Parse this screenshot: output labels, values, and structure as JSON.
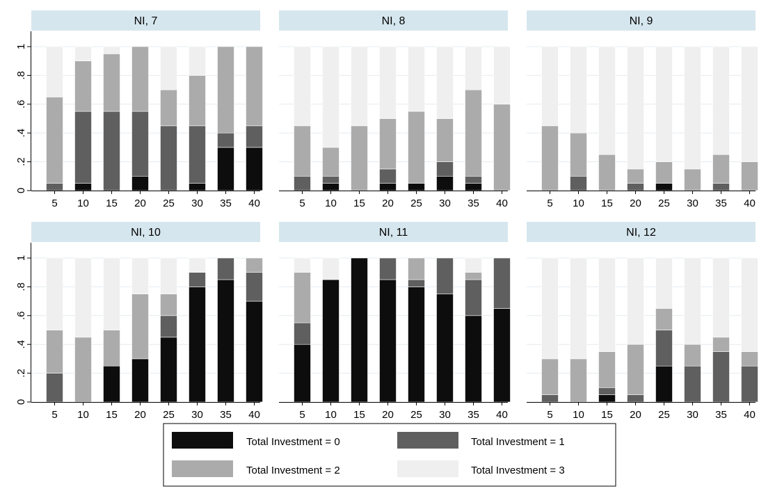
{
  "chart_data": {
    "type": "bar",
    "stacked": true,
    "layout": "facet grid 2 rows x 3 columns",
    "categories": [
      "5",
      "10",
      "15",
      "20",
      "25",
      "30",
      "35",
      "40"
    ],
    "yticks": [
      "0",
      ".2",
      ".4",
      ".6",
      ".8",
      "1"
    ],
    "ytick_values": [
      0,
      0.2,
      0.4,
      0.6,
      0.8,
      1
    ],
    "ylim": [
      0,
      1.1
    ],
    "grid": true,
    "legend_position": "bottom",
    "series_colors": [
      "#0d0d0d",
      "#5f5f5f",
      "#ababab",
      "#efefef"
    ],
    "legend": [
      "Total Investment = 0",
      "Total Investment = 1",
      "Total Investment = 2",
      "Total Investment = 3"
    ],
    "panels": [
      {
        "title": "NI, 7",
        "series": [
          {
            "values": [
              0,
              0.05,
              0,
              0.1,
              0,
              0.05,
              0.3,
              0.3
            ]
          },
          {
            "values": [
              0.05,
              0.5,
              0.55,
              0.45,
              0.45,
              0.4,
              0.1,
              0.15
            ]
          },
          {
            "values": [
              0.6,
              0.35,
              0.4,
              0.45,
              0.25,
              0.35,
              0.6,
              0.55
            ]
          },
          {
            "values": [
              0.35,
              0.1,
              0.05,
              0,
              0.3,
              0.2,
              0,
              0
            ]
          }
        ]
      },
      {
        "title": "NI, 8",
        "series": [
          {
            "values": [
              0,
              0.05,
              0,
              0.05,
              0.05,
              0.1,
              0.05,
              0
            ]
          },
          {
            "values": [
              0.1,
              0.05,
              0,
              0.1,
              0,
              0.1,
              0.05,
              0
            ]
          },
          {
            "values": [
              0.35,
              0.2,
              0.45,
              0.35,
              0.5,
              0.3,
              0.6,
              0.6
            ]
          },
          {
            "values": [
              0.55,
              0.7,
              0.55,
              0.5,
              0.45,
              0.5,
              0.3,
              0.4
            ]
          }
        ]
      },
      {
        "title": "NI, 9",
        "series": [
          {
            "values": [
              0,
              0,
              0,
              0,
              0.05,
              0,
              0,
              0
            ]
          },
          {
            "values": [
              0,
              0.1,
              0,
              0.05,
              0,
              0,
              0.05,
              0
            ]
          },
          {
            "values": [
              0.45,
              0.3,
              0.25,
              0.1,
              0.15,
              0.15,
              0.2,
              0.2
            ]
          },
          {
            "values": [
              0.55,
              0.6,
              0.75,
              0.85,
              0.8,
              0.85,
              0.75,
              0.8
            ]
          }
        ]
      },
      {
        "title": "NI, 10",
        "series": [
          {
            "values": [
              0,
              0,
              0.25,
              0.3,
              0.45,
              0.8,
              0.85,
              0.7
            ]
          },
          {
            "values": [
              0.2,
              0,
              0,
              0,
              0.15,
              0.1,
              0.15,
              0.2
            ]
          },
          {
            "values": [
              0.3,
              0.45,
              0.25,
              0.45,
              0.15,
              0,
              0,
              0.1
            ]
          },
          {
            "values": [
              0.5,
              0.55,
              0.5,
              0.25,
              0.25,
              0.1,
              0,
              0
            ]
          }
        ]
      },
      {
        "title": "NI, 11",
        "series": [
          {
            "values": [
              0.4,
              0.85,
              1.0,
              0.85,
              0.8,
              0.75,
              0.6,
              0.65
            ]
          },
          {
            "values": [
              0.15,
              0,
              0,
              0.15,
              0.05,
              0.25,
              0.25,
              0.35
            ]
          },
          {
            "values": [
              0.35,
              0,
              0,
              0,
              0.15,
              0,
              0.05,
              0
            ]
          },
          {
            "values": [
              0.1,
              0.15,
              0,
              0,
              0,
              0,
              0.1,
              0
            ]
          }
        ]
      },
      {
        "title": "NI, 12",
        "series": [
          {
            "values": [
              0,
              0,
              0.05,
              0,
              0.25,
              0,
              0,
              0
            ]
          },
          {
            "values": [
              0.05,
              0,
              0.05,
              0.05,
              0.25,
              0.25,
              0.35,
              0.25
            ]
          },
          {
            "values": [
              0.25,
              0.3,
              0.25,
              0.35,
              0.15,
              0.15,
              0.1,
              0.1
            ]
          },
          {
            "values": [
              0.7,
              0.7,
              0.65,
              0.6,
              0.35,
              0.6,
              0.55,
              0.65
            ]
          }
        ]
      }
    ]
  }
}
